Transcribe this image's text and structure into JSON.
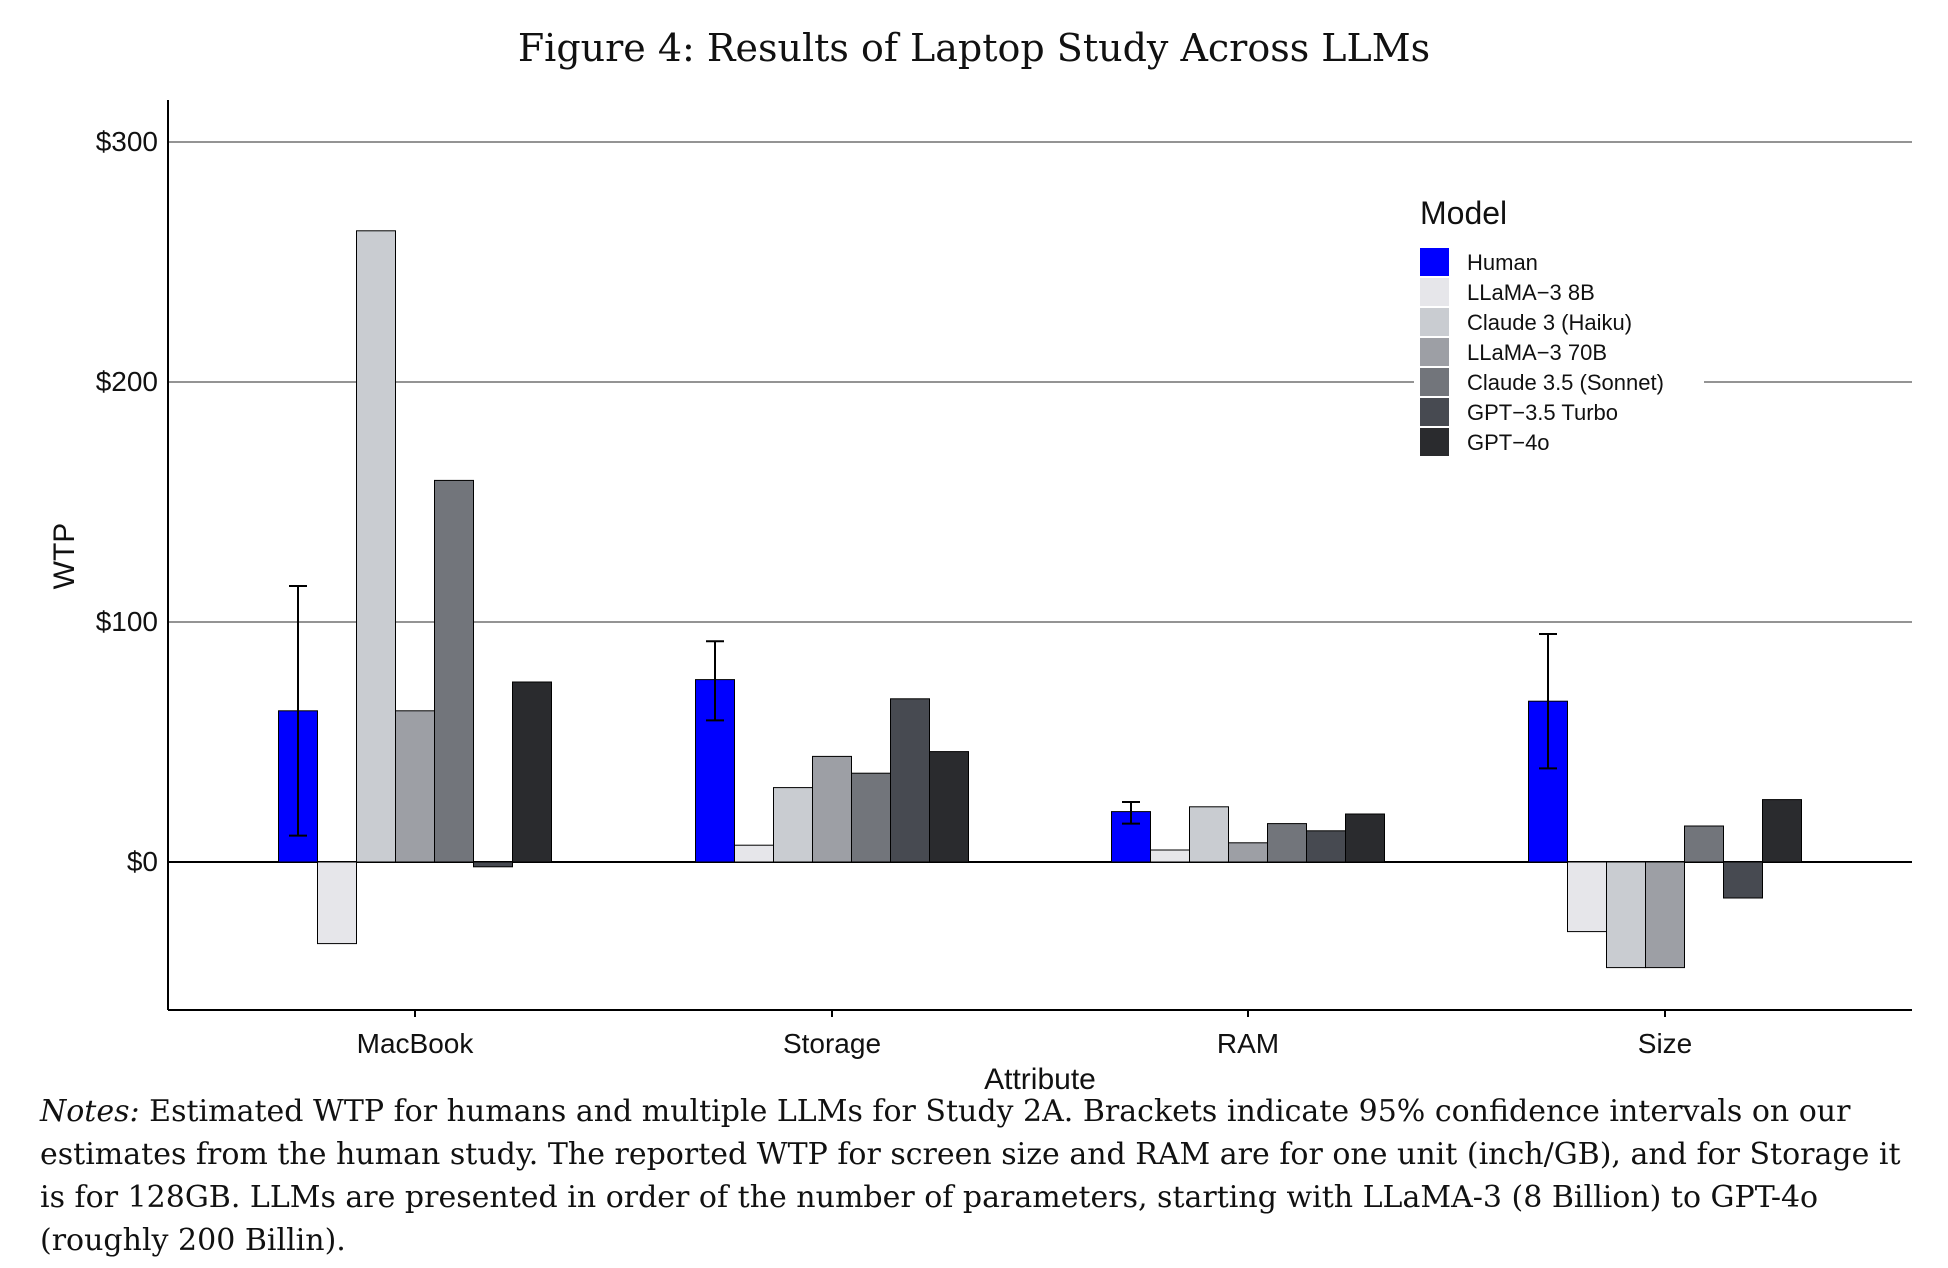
{
  "figure_title": "Figure 4: Results of Laptop Study Across LLMs",
  "notes_label": "Notes:",
  "notes_text": "Estimated WTP for humans and multiple LLMs for Study 2A. Brackets indicate 95% confidence intervals on our estimates from the human study. The reported WTP for screen size and RAM are for one unit (inch/GB), and for Storage it is for 128GB. LLMs are presented in order of the number of parameters, starting with LLaMA-3 (8 Billion) to GPT-4o (roughly 200 Billin).",
  "chart_data": {
    "type": "bar",
    "title": "Figure 4: Results of Laptop Study Across LLMs",
    "xlabel": "Attribute",
    "ylabel": "WTP",
    "ylim": [
      -62,
      318
    ],
    "yticks": [
      0,
      100,
      200,
      300
    ],
    "ytick_labels": [
      "$0",
      "$100",
      "$200",
      "$300"
    ],
    "grid": true,
    "categories": [
      "MacBook",
      "Storage",
      "RAM",
      "Size"
    ],
    "legend_title": "Model",
    "legend_position": "top-right",
    "series": [
      {
        "name": "Human",
        "color": "#0000ff",
        "values": [
          63,
          76,
          21,
          67
        ],
        "ci_low": [
          11,
          59,
          16,
          39
        ],
        "ci_high": [
          115,
          92,
          25,
          95
        ]
      },
      {
        "name": "LLaMA−3 8B",
        "color": "#e6e6ea",
        "values": [
          -34,
          7,
          5,
          -29
        ]
      },
      {
        "name": "Claude 3 (Haiku)",
        "color": "#c9ccd1",
        "values": [
          263,
          31,
          23,
          -44
        ]
      },
      {
        "name": "LLaMA−3 70B",
        "color": "#9d9fa5",
        "values": [
          63,
          44,
          8,
          -44
        ]
      },
      {
        "name": "Claude 3.5 (Sonnet)",
        "color": "#72757b",
        "values": [
          159,
          37,
          16,
          15
        ]
      },
      {
        "name": "GPT−3.5 Turbo",
        "color": "#474a51",
        "values": [
          -2,
          68,
          13,
          -15
        ]
      },
      {
        "name": "GPT−4o",
        "color": "#2a2b2e",
        "values": [
          75,
          46,
          20,
          26
        ]
      }
    ]
  }
}
